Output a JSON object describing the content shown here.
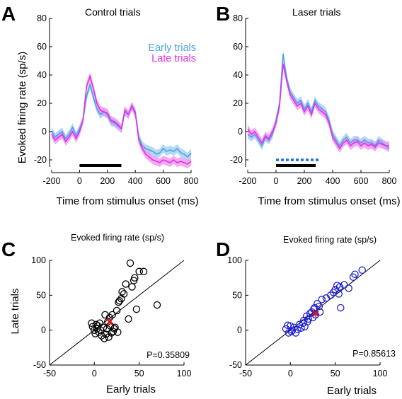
{
  "panels": [
    {
      "label": "A",
      "title": "Control trials"
    },
    {
      "label": "B",
      "title": "Laser trials"
    },
    {
      "label": "C",
      "title": "Evoked firing rate (sp/s)"
    },
    {
      "label": "D",
      "title": "Evoked firing rate (sp/s)"
    }
  ],
  "colors": {
    "early": "#4aa3e6",
    "early_band": "#9ccbf2",
    "late": "#e62ee6",
    "late_band": "#f28cf2",
    "laser_bar": "#1f6fe0",
    "scatter_c": "#000000",
    "scatter_d": "#1f1fd0",
    "mean_marker": "#e01010"
  },
  "chart_data": [
    {
      "panel": "A",
      "type": "line",
      "title": "Control trials",
      "xlabel": "Time from stimulus onset (ms)",
      "ylabel": "Evoked firing rate (sp/s)",
      "xlim": [
        -200,
        800
      ],
      "ylim": [
        -25,
        80
      ],
      "xticks": [
        "-200",
        "0",
        "200",
        "400",
        "600",
        "800"
      ],
      "yticks": [
        "-20",
        "0",
        "20",
        "40",
        "60",
        "80"
      ],
      "legend": [
        "Early trials",
        "Late trials"
      ],
      "legend_position": "top-right",
      "x": [
        -200,
        -175,
        -150,
        -125,
        -100,
        -75,
        -50,
        -25,
        0,
        25,
        50,
        75,
        100,
        125,
        150,
        175,
        200,
        225,
        250,
        275,
        300,
        325,
        350,
        375,
        400,
        425,
        450,
        475,
        500,
        525,
        550,
        575,
        600,
        625,
        650,
        675,
        700,
        725,
        750,
        775,
        800
      ],
      "series": [
        {
          "name": "Early trials",
          "values": [
            0,
            -4,
            -2,
            0,
            -5,
            -2,
            3,
            -3,
            2,
            8,
            25,
            33,
            24,
            16,
            12,
            14,
            12,
            7,
            6,
            4,
            2,
            14,
            12,
            18,
            14,
            -4,
            -10,
            -12,
            -13,
            -14,
            -16,
            -15,
            -12,
            -14,
            -13,
            -14,
            -12,
            -15,
            -16,
            -18,
            -15
          ]
        },
        {
          "name": "Late trials",
          "values": [
            -2,
            -6,
            -4,
            -2,
            -7,
            -4,
            0,
            -5,
            0,
            8,
            32,
            39,
            30,
            20,
            15,
            14,
            13,
            8,
            7,
            5,
            2,
            15,
            12,
            18,
            13,
            -6,
            -12,
            -16,
            -18,
            -20,
            -21,
            -22,
            -20,
            -21,
            -22,
            -20,
            -22,
            -21,
            -22,
            -23,
            -21
          ]
        }
      ],
      "band_halfwidth": 3,
      "stimulus_bar": {
        "start": 0,
        "end": 300,
        "level": -24
      }
    },
    {
      "panel": "B",
      "type": "line",
      "title": "Laser trials",
      "xlabel": "Time from stimulus onset (ms)",
      "ylabel": "",
      "xlim": [
        -200,
        800
      ],
      "ylim": [
        -25,
        80
      ],
      "xticks": [
        "-200",
        "0",
        "200",
        "400",
        "600",
        "800"
      ],
      "yticks": [
        "-20",
        "0",
        "20",
        "40",
        "60",
        "80"
      ],
      "x": [
        -200,
        -175,
        -150,
        -125,
        -100,
        -75,
        -50,
        -25,
        0,
        25,
        50,
        75,
        100,
        125,
        150,
        175,
        200,
        225,
        250,
        275,
        300,
        325,
        350,
        375,
        400,
        425,
        450,
        475,
        500,
        525,
        550,
        575,
        600,
        625,
        650,
        675,
        700,
        725,
        750,
        775,
        800
      ],
      "series": [
        {
          "name": "Early trials",
          "values": [
            -2,
            -4,
            -2,
            -6,
            -10,
            -4,
            -6,
            -2,
            8,
            20,
            55,
            38,
            28,
            24,
            20,
            22,
            16,
            20,
            14,
            22,
            18,
            16,
            14,
            8,
            -2,
            -6,
            -10,
            -6,
            -4,
            -8,
            -6,
            -6,
            -8,
            -6,
            -8,
            -8,
            -10,
            -6,
            -8,
            -10,
            -12
          ]
        },
        {
          "name": "Late trials",
          "values": [
            2,
            -2,
            0,
            -4,
            -8,
            -3,
            -5,
            0,
            6,
            18,
            48,
            36,
            26,
            22,
            18,
            20,
            14,
            18,
            12,
            20,
            16,
            14,
            12,
            6,
            -4,
            -8,
            -12,
            -8,
            -6,
            -10,
            -8,
            -7,
            -10,
            -8,
            -10,
            -9,
            -11,
            -8,
            -9,
            -10,
            -10
          ]
        }
      ],
      "band_halfwidth": 3,
      "stimulus_bar": {
        "start": 0,
        "end": 280,
        "level": -24
      },
      "laser_bar": {
        "start": 0,
        "end": 300,
        "level": -20
      }
    },
    {
      "panel": "C",
      "type": "scatter",
      "title": "Evoked firing rate (sp/s)",
      "xlabel": "Early trials",
      "ylabel": "Late trials",
      "xlim": [
        -50,
        100
      ],
      "ylim": [
        -50,
        100
      ],
      "xticks": [
        "-50",
        "0",
        "50",
        "100"
      ],
      "yticks": [
        "-50",
        "0",
        "50",
        "100"
      ],
      "annotation": "P=0.35809",
      "points": [
        [
          -3,
          10
        ],
        [
          -2,
          5
        ],
        [
          0,
          0
        ],
        [
          1,
          -5
        ],
        [
          2,
          8
        ],
        [
          3,
          2
        ],
        [
          4,
          6
        ],
        [
          5,
          -3
        ],
        [
          6,
          10
        ],
        [
          7,
          0
        ],
        [
          8,
          -8
        ],
        [
          10,
          4
        ],
        [
          11,
          -12
        ],
        [
          12,
          22
        ],
        [
          13,
          -6
        ],
        [
          14,
          2
        ],
        [
          15,
          12
        ],
        [
          16,
          -10
        ],
        [
          17,
          18
        ],
        [
          18,
          6
        ],
        [
          19,
          -4
        ],
        [
          20,
          22
        ],
        [
          21,
          -2
        ],
        [
          22,
          2
        ],
        [
          23,
          4
        ],
        [
          25,
          28
        ],
        [
          26,
          -3
        ],
        [
          27,
          40
        ],
        [
          28,
          42
        ],
        [
          30,
          45
        ],
        [
          31,
          55
        ],
        [
          33,
          52
        ],
        [
          35,
          66
        ],
        [
          38,
          16
        ],
        [
          40,
          96
        ],
        [
          42,
          62
        ],
        [
          44,
          71
        ],
        [
          45,
          75
        ],
        [
          47,
          30
        ],
        [
          50,
          84
        ],
        [
          55,
          84
        ],
        [
          70,
          36
        ]
      ],
      "mean_marker": [
        17,
        12
      ]
    },
    {
      "panel": "D",
      "type": "scatter",
      "title": "Evoked firing rate (sp/s)",
      "xlabel": "Early trials",
      "ylabel": "",
      "xlim": [
        -50,
        100
      ],
      "ylim": [
        -50,
        100
      ],
      "xticks": [
        "-50",
        "0",
        "50",
        "100"
      ],
      "yticks": [
        "-50",
        "0",
        "50",
        "100"
      ],
      "annotation": "P=0.85613",
      "points": [
        [
          -5,
          2
        ],
        [
          -3,
          7
        ],
        [
          -2,
          -4
        ],
        [
          0,
          6
        ],
        [
          1,
          -2
        ],
        [
          2,
          0
        ],
        [
          4,
          4
        ],
        [
          6,
          -4
        ],
        [
          8,
          1
        ],
        [
          10,
          8
        ],
        [
          12,
          3
        ],
        [
          14,
          10
        ],
        [
          15,
          14
        ],
        [
          16,
          5
        ],
        [
          18,
          20
        ],
        [
          19,
          12
        ],
        [
          20,
          16
        ],
        [
          22,
          24
        ],
        [
          24,
          26
        ],
        [
          25,
          18
        ],
        [
          26,
          30
        ],
        [
          27,
          32
        ],
        [
          28,
          22
        ],
        [
          30,
          38
        ],
        [
          32,
          34
        ],
        [
          33,
          26
        ],
        [
          35,
          44
        ],
        [
          40,
          46
        ],
        [
          45,
          50
        ],
        [
          48,
          54
        ],
        [
          50,
          58
        ],
        [
          52,
          64
        ],
        [
          54,
          52
        ],
        [
          55,
          62
        ],
        [
          56,
          32
        ],
        [
          60,
          65
        ],
        [
          65,
          60
        ],
        [
          70,
          76
        ],
        [
          72,
          80
        ],
        [
          80,
          86
        ]
      ],
      "mean_marker": [
        28,
        24
      ]
    }
  ]
}
